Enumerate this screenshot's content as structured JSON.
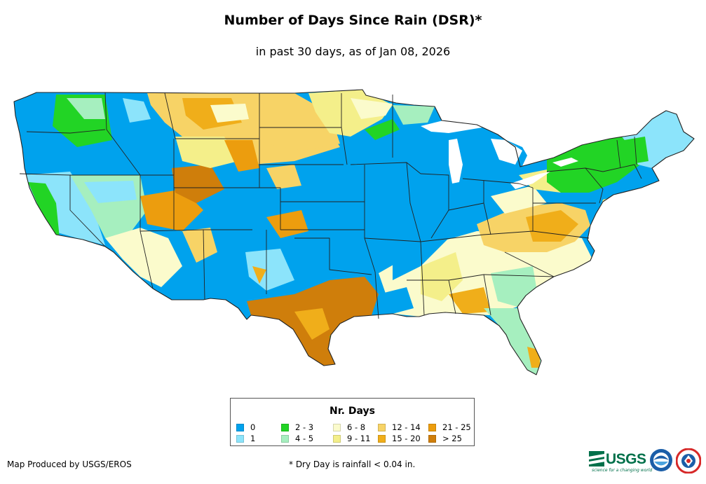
{
  "title": "Number of Days Since Rain (DSR)*",
  "subtitle": "in past 30 days, as of Jan 08, 2026",
  "legend": {
    "title": "Nr. Days",
    "items": [
      {
        "label": "0",
        "color": "#00a2ed"
      },
      {
        "label": "1",
        "color": "#8ce4fb"
      },
      {
        "label": "2 - 3",
        "color": "#22d425"
      },
      {
        "label": "4 - 5",
        "color": "#a6efbf"
      },
      {
        "label": "6 - 8",
        "color": "#fbfbcc"
      },
      {
        "label": "9 - 11",
        "color": "#f4ef8a"
      },
      {
        "label": "12 - 14",
        "color": "#f7d366"
      },
      {
        "label": "15 - 20",
        "color": "#f0ae1a"
      },
      {
        "label": "21 - 25",
        "color": "#ec9d0e"
      },
      {
        "label": "> 25",
        "color": "#cf7e0b"
      }
    ]
  },
  "credit": "Map Produced by USGS/EROS",
  "footnote": "* Dry Day is rainfall < 0.04 in.",
  "logos": {
    "usgs_text": "USGS",
    "usgs_tagline": "science for a changing world",
    "usgs_color": "#00704a",
    "noaa_color": "#1b5ea8",
    "nws_color": "#d62828"
  }
}
